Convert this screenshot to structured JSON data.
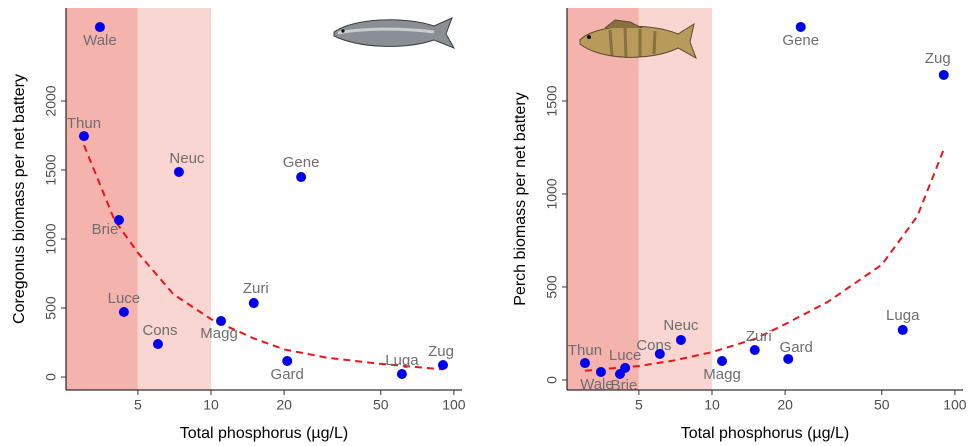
{
  "chart_data": [
    {
      "type": "scatter",
      "xlabel": "Total phosphorus (µg/L)",
      "ylabel": "Coregonus biomass per net battery",
      "log_x": true,
      "xlim": [
        2.53,
        108
      ],
      "ylim": [
        -94,
        2674
      ],
      "xticks": [
        5,
        10,
        20,
        50,
        100
      ],
      "yticks": [
        0,
        500,
        1000,
        1500,
        2000
      ],
      "bands": [
        {
          "to": 5,
          "color": "#f5b3ad"
        },
        {
          "from": 5,
          "to": 10,
          "color": "#fad6d2"
        }
      ],
      "series": [
        {
          "color": "#0000ee",
          "labels": [
            "Wale",
            "Thun",
            "Neuc",
            "Gene",
            "Brie",
            "Luce",
            "Zuri",
            "Magg",
            "Cons",
            "Gard",
            "Luga",
            "Zug"
          ],
          "x": [
            3.49,
            3.0,
            7.38,
            23.5,
            4.18,
            4.38,
            15.0,
            11.0,
            6.05,
            20.6,
            61.1,
            90.2
          ],
          "values": [
            2536,
            1746,
            1486,
            1449,
            1138,
            471,
            536,
            406,
            239,
            116,
            22,
            87
          ]
        }
      ],
      "fit": {
        "color": "#e8151b",
        "x": [
          3,
          4,
          5,
          7,
          10,
          15,
          20,
          30,
          50,
          90
        ],
        "y": [
          1680,
          1140,
          900,
          600,
          420,
          280,
          200,
          140,
          95,
          55
        ]
      }
    },
    {
      "type": "scatter",
      "xlabel": "Total phosphorus (µg/L)",
      "ylabel": "Perch biomass per net battery",
      "log_x": true,
      "xlim": [
        2.53,
        108
      ],
      "ylim": [
        -54,
        2000
      ],
      "xticks": [
        5,
        10,
        20,
        50,
        100
      ],
      "yticks": [
        0,
        500,
        1000,
        1500
      ],
      "bands": [
        {
          "to": 5,
          "color": "#f5b3ad"
        },
        {
          "from": 5,
          "to": 10,
          "color": "#fad6d2"
        }
      ],
      "series": [
        {
          "color": "#0000ee",
          "labels": [
            "Gene",
            "Zug",
            "Luga",
            "Neuc",
            "Cons",
            "Zuri",
            "Gard",
            "Magg",
            "Thun",
            "Luce",
            "Wale",
            "Brie"
          ],
          "x": [
            23.2,
            90,
            61,
            7.45,
            6.1,
            15,
            20.6,
            11,
            3.0,
            4.39,
            3.49,
            4.18
          ],
          "values": [
            1898,
            1640,
            269,
            215,
            140,
            161,
            113,
            102,
            91,
            65,
            43,
            32
          ]
        }
      ],
      "fit": {
        "color": "#e8151b",
        "x": [
          3,
          5,
          7,
          10,
          15,
          20,
          30,
          50,
          70,
          90
        ],
        "y": [
          50,
          75,
          105,
          150,
          220,
          300,
          420,
          620,
          880,
          1240
        ]
      }
    }
  ]
}
